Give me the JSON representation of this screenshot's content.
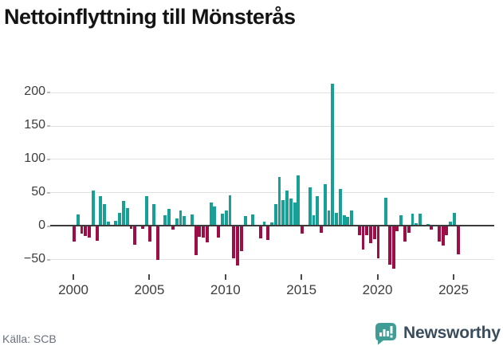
{
  "title": "Nettoinflyttning till Mönsterås",
  "source": "Källa: SCB",
  "branding": {
    "name": "Newsworthy",
    "icon": "newsworthy-speech-bubble-chart-icon"
  },
  "colors": {
    "positive_bar": "#16a096",
    "negative_bar": "#9d0e46",
    "gridline": "#e2e2e2",
    "zero_line": "#3b3b3b",
    "axis_text": "#3d3d3d",
    "title_text": "#141414",
    "source_text": "#69707d",
    "brand_text": "#3a4d5c",
    "brand_icon": "#3f9d95"
  },
  "chart_data": {
    "type": "bar",
    "title": "Nettoinflyttning till Mönsterås",
    "frequency": "quarterly",
    "period_start": "2000-Q1",
    "period_end": "2025-Q2",
    "values": [
      -23,
      17,
      -12,
      -15,
      -18,
      53,
      -22,
      44,
      32,
      6,
      0,
      8,
      20,
      37,
      27,
      -5,
      -28,
      0,
      -4,
      44,
      -23,
      33,
      -51,
      0,
      16,
      25,
      -6,
      11,
      23,
      15,
      0,
      17,
      -44,
      -16,
      -18,
      -25,
      35,
      29,
      -17,
      18,
      23,
      46,
      -49,
      -59,
      -38,
      15,
      0,
      17,
      0,
      -19,
      6,
      -21,
      5,
      33,
      73,
      39,
      53,
      41,
      35,
      76,
      -12,
      0,
      58,
      16,
      44,
      -10,
      62,
      23,
      213,
      20,
      55,
      16,
      13,
      23,
      0,
      -14,
      -36,
      -14,
      -26,
      -20,
      -48,
      0,
      42,
      -58,
      -64,
      -8,
      16,
      -24,
      -10,
      18,
      4,
      18,
      0,
      3,
      -6,
      0,
      -24,
      -29,
      -14,
      6,
      19,
      -42
    ],
    "y_ticks": [
      200,
      150,
      100,
      50,
      0,
      -50
    ],
    "x_ticks": [
      "2000",
      "2005",
      "2010",
      "2015",
      "2020",
      "2025"
    ],
    "ylim": [
      -75,
      225
    ],
    "grid": true,
    "legend": false
  }
}
